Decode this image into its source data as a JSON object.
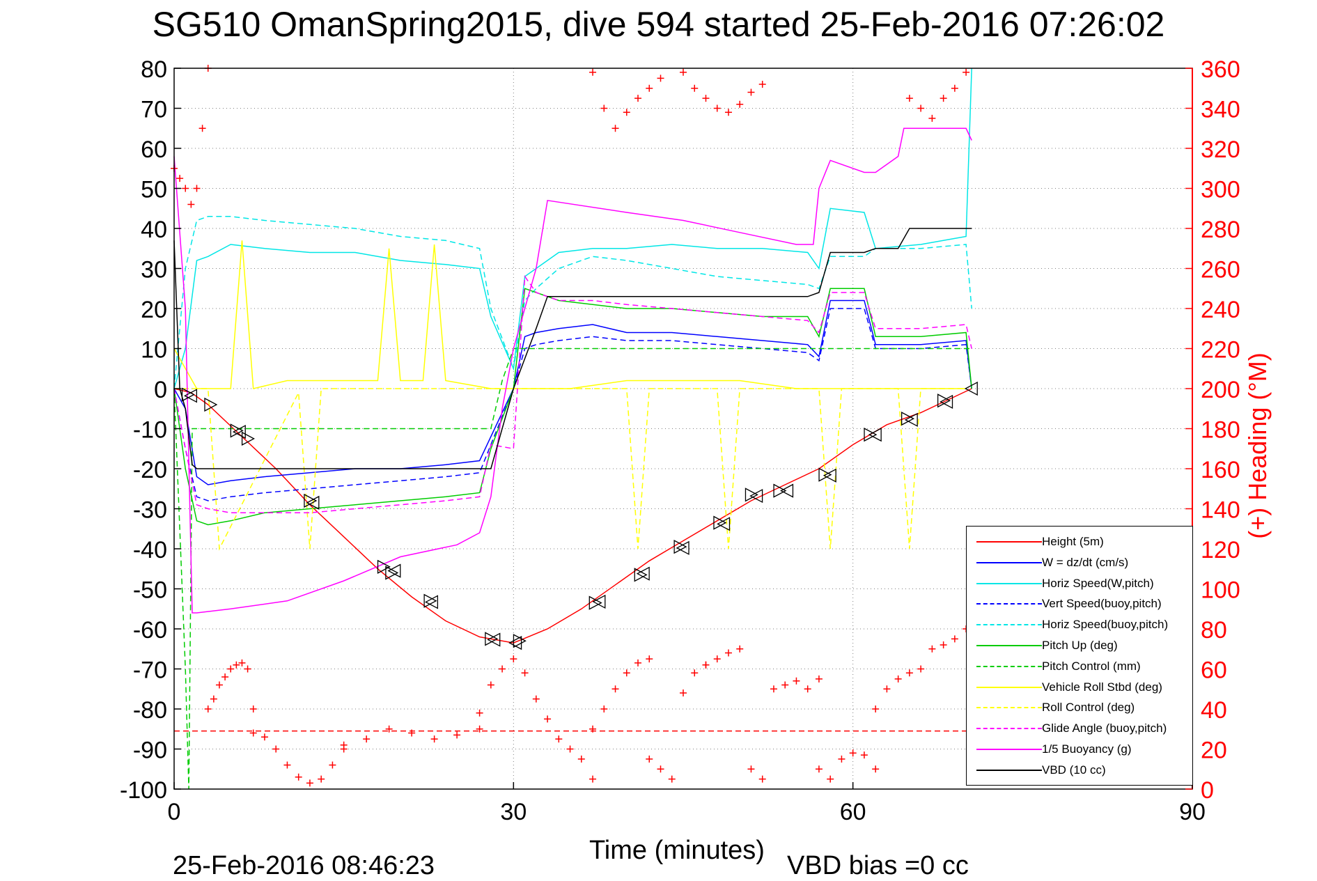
{
  "title": "SG510 OmanSpring2015, dive 594 started 25-Feb-2016 07:26:02",
  "footer_time": "25-Feb-2016 08:46:23",
  "footer_bias": "VBD bias =0 cc",
  "chart_data": {
    "type": "line",
    "xlabel": "Time (minutes)",
    "ylabel": "",
    "y2label": "(+) Heading (°M)",
    "xlim": [
      0,
      90
    ],
    "ylim": [
      -100,
      80
    ],
    "y2lim": [
      0,
      360
    ],
    "xticks": [
      0,
      30,
      60,
      90
    ],
    "yticks": [
      80,
      70,
      60,
      50,
      40,
      30,
      20,
      10,
      0,
      -10,
      -20,
      -30,
      -40,
      -50,
      -60,
      -70,
      -80,
      -90,
      -100
    ],
    "y2ticks": [
      360,
      340,
      320,
      300,
      280,
      260,
      240,
      220,
      200,
      180,
      160,
      140,
      120,
      100,
      80,
      60,
      40,
      20,
      0
    ],
    "grid": true,
    "legend_position": "bottom-right",
    "legend": [
      {
        "label": "Height (5m)",
        "color": "#ff0000",
        "dash": "solid"
      },
      {
        "label": "W = dz/dt (cm/s)",
        "color": "#0000ff",
        "dash": "solid"
      },
      {
        "label": "Horiz Speed(W,pitch)",
        "color": "#00e6e6",
        "dash": "solid"
      },
      {
        "label": "Vert Speed(buoy,pitch)",
        "color": "#0000ff",
        "dash": "dashed"
      },
      {
        "label": "Horiz Speed(buoy,pitch)",
        "color": "#00e6e6",
        "dash": "dashed"
      },
      {
        "label": "Pitch Up (deg)",
        "color": "#00cc00",
        "dash": "solid"
      },
      {
        "label": "Pitch Control (mm)",
        "color": "#00cc00",
        "dash": "dashed"
      },
      {
        "label": "Vehicle Roll Stbd (deg)",
        "color": "#ffff00",
        "dash": "solid"
      },
      {
        "label": "Roll Control (deg)",
        "color": "#ffff00",
        "dash": "dashed"
      },
      {
        "label": "Glide Angle (buoy,pitch)",
        "color": "#ff00ff",
        "dash": "dashed"
      },
      {
        "label": "1/5 Buoyancy (g)",
        "color": "#ff00ff",
        "dash": "solid"
      },
      {
        "label": "VBD (10 cc)",
        "color": "#000000",
        "dash": "solid"
      }
    ],
    "series": [
      {
        "name": "Height (5m)",
        "color": "#ff0000",
        "dash": "solid",
        "x": [
          0,
          1.5,
          3,
          6,
          9,
          12,
          15,
          18,
          21,
          24,
          27,
          30,
          33,
          36,
          39,
          42,
          45,
          48,
          51,
          54,
          57,
          60,
          63,
          66,
          69,
          70.5
        ],
        "y": [
          0,
          -1,
          -4,
          -12,
          -20,
          -29,
          -37,
          -45,
          -52,
          -58,
          -62,
          -63.5,
          -60,
          -55,
          -49,
          -43,
          -38,
          -33,
          -28,
          -24,
          -20,
          -14,
          -9,
          -6,
          -2,
          0
        ]
      },
      {
        "name": "W = dz/dt (cm/s)",
        "color": "#0000ff",
        "dash": "solid",
        "x": [
          0,
          1,
          2,
          3,
          5,
          8,
          12,
          16,
          20,
          24,
          27,
          28,
          30,
          31,
          32,
          34,
          37,
          40,
          44,
          48,
          52,
          56,
          57,
          58,
          61,
          62,
          66,
          70,
          70.5
        ],
        "y": [
          0,
          -5,
          -22,
          -24,
          -23,
          -22,
          -21,
          -20,
          -20,
          -19,
          -18,
          -12,
          0,
          13,
          14,
          15,
          16,
          14,
          14,
          13,
          12,
          11,
          8,
          22,
          22,
          11,
          11,
          12,
          0
        ]
      },
      {
        "name": "Horiz Speed(W,pitch)",
        "color": "#00e6e6",
        "dash": "solid",
        "x": [
          0,
          1,
          2,
          3,
          5,
          8,
          12,
          16,
          20,
          24,
          27,
          28,
          30,
          31,
          32,
          34,
          37,
          40,
          44,
          48,
          52,
          56,
          57,
          58,
          61,
          62,
          66,
          70,
          70.5
        ],
        "y": [
          0,
          10,
          32,
          33,
          36,
          35,
          34,
          34,
          32,
          31,
          30,
          18,
          5,
          28,
          30,
          34,
          35,
          35,
          36,
          35,
          35,
          34,
          30,
          45,
          44,
          35,
          36,
          38,
          80
        ]
      },
      {
        "name": "Vert Speed(buoy,pitch)",
        "color": "#0000ff",
        "dash": "dashed",
        "x": [
          0,
          1,
          2,
          3,
          5,
          8,
          12,
          16,
          20,
          24,
          27,
          28,
          30,
          31,
          32,
          34,
          37,
          40,
          44,
          48,
          52,
          56,
          57,
          58,
          61,
          62,
          66,
          70,
          70.5
        ],
        "y": [
          0,
          -15,
          -27,
          -28,
          -27,
          -26,
          -25,
          -24,
          -23,
          -22,
          -21,
          -14,
          0,
          10,
          11,
          12,
          13,
          12,
          12,
          11,
          10,
          9,
          7,
          20,
          20,
          10,
          10,
          11,
          0
        ]
      },
      {
        "name": "Horiz Speed(buoy,pitch)",
        "color": "#00e6e6",
        "dash": "dashed",
        "x": [
          0,
          1,
          2,
          3,
          5,
          8,
          12,
          16,
          20,
          24,
          27,
          28,
          30,
          31,
          32,
          34,
          37,
          40,
          44,
          48,
          52,
          56,
          57,
          58,
          61,
          62,
          66,
          70,
          70.5
        ],
        "y": [
          0,
          30,
          42,
          43,
          43,
          42,
          41,
          40,
          38,
          37,
          35,
          20,
          5,
          22,
          25,
          30,
          33,
          32,
          30,
          28,
          27,
          26,
          25,
          33,
          33,
          35,
          35,
          36,
          20
        ]
      },
      {
        "name": "Pitch Up (deg)",
        "color": "#00cc00",
        "dash": "solid",
        "x": [
          0,
          1,
          2,
          3,
          5,
          8,
          12,
          16,
          20,
          24,
          27,
          28,
          30,
          31,
          32,
          34,
          37,
          40,
          44,
          48,
          52,
          56,
          57,
          58,
          61,
          62,
          66,
          70,
          70.5
        ],
        "y": [
          0,
          -20,
          -33,
          -34,
          -33,
          -31,
          -30,
          -29,
          -28,
          -27,
          -26,
          -15,
          0,
          25,
          24,
          22,
          21,
          20,
          20,
          19,
          18,
          18,
          13,
          25,
          25,
          13,
          13,
          14,
          0
        ]
      },
      {
        "name": "Pitch Control (mm)",
        "color": "#00cc00",
        "dash": "dashed",
        "x": [
          0,
          1,
          1.3,
          1.6,
          3,
          27,
          28,
          29,
          30,
          32,
          70.5
        ],
        "y": [
          0,
          -70,
          -100,
          -10,
          -10,
          -10,
          -10,
          2,
          10,
          10,
          10
        ]
      },
      {
        "name": "Vehicle Roll Stbd (deg)",
        "color": "#ffff00",
        "dash": "solid",
        "x": [
          0,
          2,
          5,
          6,
          7,
          10,
          18,
          19,
          20,
          22,
          23,
          24,
          28,
          30,
          35,
          40,
          45,
          50,
          55,
          60,
          65,
          70
        ],
        "y": [
          10,
          0,
          0,
          37,
          0,
          2,
          2,
          35,
          2,
          2,
          36,
          2,
          0,
          0,
          0,
          2,
          2,
          2,
          0,
          0,
          0,
          0
        ]
      },
      {
        "name": "Roll Control (deg)",
        "color": "#ffff00",
        "dash": "dashed",
        "x": [
          0,
          2,
          3,
          4,
          11,
          12,
          13,
          30,
          32,
          40,
          41,
          42,
          48,
          49,
          50,
          57,
          58,
          59,
          64,
          65,
          66,
          70
        ],
        "y": [
          0,
          0,
          0,
          -40,
          -1,
          -40,
          0,
          0,
          0,
          0,
          -40,
          0,
          0,
          -40,
          0,
          0,
          -40,
          0,
          0,
          -40,
          0,
          0
        ]
      },
      {
        "name": "Glide Angle (buoy,pitch)",
        "color": "#ff00ff",
        "dash": "dashed",
        "x": [
          0,
          1,
          2,
          3,
          5,
          8,
          12,
          16,
          20,
          24,
          27,
          28,
          30,
          31,
          32,
          34,
          37,
          40,
          44,
          48,
          52,
          56,
          57,
          58,
          61,
          62,
          66,
          70,
          70.5
        ],
        "y": [
          0,
          -15,
          -29,
          -30,
          -31,
          -31,
          -31,
          -30,
          -29,
          -28,
          -27,
          -14,
          -15,
          28,
          24,
          22,
          22,
          21,
          20,
          19,
          18,
          17,
          14,
          24,
          24,
          15,
          15,
          16,
          10
        ]
      },
      {
        "name": "1/5 Buoyancy (g)",
        "color": "#ff00ff",
        "dash": "solid",
        "x": [
          0,
          1,
          1.6,
          2,
          5,
          10,
          15,
          20,
          25,
          27,
          28,
          29,
          30,
          32,
          33,
          40,
          45,
          50,
          55,
          56.5,
          57,
          58,
          61,
          62,
          64,
          64.5,
          70,
          70.5
        ],
        "y": [
          58,
          20,
          -56,
          -56,
          -55,
          -53,
          -48,
          -42,
          -39,
          -36,
          -27,
          -5,
          10,
          30,
          47,
          44,
          42,
          39,
          36,
          36,
          50,
          57,
          54,
          54,
          58,
          65,
          65,
          62
        ]
      },
      {
        "name": "VBD (10 cc)",
        "color": "#000000",
        "dash": "solid",
        "x": [
          0,
          0.5,
          1,
          1.6,
          2,
          27,
          28,
          30,
          32,
          33,
          56,
          57,
          58,
          61,
          62,
          64,
          65,
          70.5
        ],
        "y": [
          37,
          0,
          -5,
          -19,
          -20,
          -20,
          -20,
          0,
          15,
          23,
          23,
          24,
          34,
          34,
          35,
          35,
          40,
          40
        ]
      }
    ],
    "heading_series": {
      "name": "(+) Heading",
      "color": "#ff0000",
      "marker": "+",
      "axis": "right",
      "segments": [
        {
          "x": [
            0,
            0.5,
            1,
            1.5,
            2,
            2.5,
            3
          ],
          "y": [
            310,
            305,
            300,
            292,
            300,
            330,
            360
          ]
        },
        {
          "x": [
            3,
            3.5,
            4,
            4.5,
            5,
            5.5,
            6,
            6.5,
            7
          ],
          "y": [
            40,
            45,
            52,
            56,
            60,
            62,
            63,
            60,
            40
          ]
        },
        {
          "x": [
            7,
            8,
            9,
            10,
            11,
            12,
            13,
            14,
            15
          ],
          "y": [
            28,
            26,
            20,
            12,
            6,
            3,
            5,
            12,
            20
          ]
        },
        {
          "x": [
            15,
            17,
            19,
            21,
            23,
            25,
            27
          ],
          "y": [
            22,
            25,
            30,
            28,
            25,
            27,
            30
          ]
        },
        {
          "x": [
            27,
            28,
            29,
            30,
            31,
            32,
            33,
            34,
            35,
            36,
            37
          ],
          "y": [
            38,
            52,
            60,
            65,
            58,
            45,
            35,
            25,
            20,
            15,
            5
          ]
        },
        {
          "x": [
            37,
            38,
            39,
            40,
            41,
            42
          ],
          "y": [
            30,
            40,
            50,
            58,
            63,
            65
          ]
        },
        {
          "x": [
            42,
            43,
            44,
            45,
            46,
            47
          ],
          "y": [
            15,
            10,
            5,
            48,
            58,
            62
          ]
        },
        {
          "x": [
            47,
            48,
            49,
            50
          ],
          "y": [
            62,
            65,
            68,
            70
          ]
        },
        {
          "x": [
            51,
            52,
            53,
            54,
            55,
            56,
            57
          ],
          "y": [
            10,
            5,
            50,
            52,
            54,
            50,
            55
          ]
        },
        {
          "x": [
            57,
            58,
            59,
            60,
            61,
            62
          ],
          "y": [
            10,
            5,
            15,
            18,
            17,
            10
          ]
        },
        {
          "x": [
            62,
            63,
            64,
            65,
            66
          ],
          "y": [
            40,
            50,
            55,
            58,
            60
          ]
        },
        {
          "x": [
            67,
            68,
            69,
            70,
            70.5
          ],
          "y": [
            70,
            72,
            75,
            80,
            85
          ]
        },
        {
          "x": [
            37,
            38,
            39,
            40,
            41,
            42,
            43
          ],
          "y": [
            358,
            340,
            330,
            338,
            345,
            350,
            355
          ]
        },
        {
          "x": [
            45,
            46,
            47,
            48,
            49,
            50,
            51,
            52
          ],
          "y": [
            358,
            350,
            345,
            340,
            338,
            342,
            348,
            352
          ]
        },
        {
          "x": [
            65,
            66,
            67,
            68,
            69,
            70
          ],
          "y": [
            345,
            340,
            335,
            345,
            350,
            358
          ]
        }
      ]
    },
    "reference_line": {
      "y": 29,
      "axis": "right",
      "color": "#ff0000",
      "dash": "dashed"
    },
    "markers": {
      "triangles_right": {
        "x": [
          1.2,
          3.2,
          5.5,
          6.5,
          12,
          18.5,
          19.2,
          22.6,
          28,
          30.5,
          37.2,
          41.2,
          44.7,
          48.2,
          51,
          53.5,
          57.5,
          61.5,
          64.8,
          68
        ],
        "y": [
          -1.5,
          -4,
          -10.5,
          -12.5,
          -28,
          -44.5,
          -46,
          -53,
          -62.5,
          -63,
          -53.5,
          -46.5,
          -39.5,
          -33.5,
          -26.5,
          -25.5,
          -21.5,
          -11.5,
          -7.5,
          -3
        ]
      },
      "triangles_left": {
        "x": [
          1.5,
          5.8,
          12.3,
          19.5,
          22.8,
          28.3,
          30.2,
          37.6,
          41.5,
          45,
          48.6,
          51.5,
          54.2,
          58,
          62,
          65.2,
          68.3,
          70.5
        ],
        "y": [
          -1.8,
          -10.8,
          -28.5,
          -45.5,
          -53.3,
          -62.7,
          -63.5,
          -53.2,
          -46.2,
          -39.8,
          -33.8,
          -26.8,
          -25.5,
          -21.7,
          -11.5,
          -7.8,
          -3.3,
          0
        ]
      }
    }
  }
}
